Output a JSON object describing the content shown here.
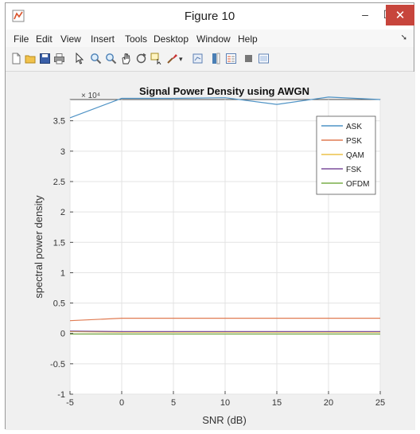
{
  "window": {
    "title": "Figure 10",
    "minimize_glyph": "–",
    "maximize_glyph": "☐",
    "close_glyph": "✕"
  },
  "menu": [
    "File",
    "Edit",
    "View",
    "Insert",
    "Tools",
    "Desktop",
    "Window",
    "Help"
  ],
  "toolbar_icons": [
    "new-figure-icon",
    "open-file-icon",
    "save-icon",
    "print-icon",
    "pointer-icon",
    "zoom-in-icon",
    "zoom-out-icon",
    "pan-icon",
    "rotate-icon",
    "data-cursor-icon",
    "brush-icon",
    "link-icon",
    "colorbar-icon",
    "legend-icon",
    "hide-plot-tools-icon",
    "show-plot-tools-icon"
  ],
  "colors": {
    "ASK": "#4f93c5",
    "PSK": "#e07b52",
    "QAM": "#ecc24a",
    "FSK": "#7b4d9b",
    "OFDM": "#7aad48",
    "close_button": "#c7453c"
  },
  "chart_data": {
    "type": "line",
    "title": "Signal Power Density using AWGN",
    "xlabel": "SNR (dB)",
    "ylabel": "spectral power density",
    "y_exponent_label": "× 10⁴",
    "xlim": [
      -5,
      25
    ],
    "ylim": [
      -10000,
      38500
    ],
    "xticks": [
      -5,
      0,
      5,
      10,
      15,
      20,
      25
    ],
    "yticks": [
      -1,
      -0.5,
      0,
      0.5,
      1,
      1.5,
      2,
      2.5,
      3,
      3.5
    ],
    "ytick_labels": [
      "-1",
      "-0.5",
      "0",
      "0.5",
      "1",
      "1.5",
      "2",
      "2.5",
      "3",
      "3.5"
    ],
    "grid": true,
    "legend_position": "top-right",
    "x": [
      -5,
      0,
      5,
      10,
      15,
      20,
      25
    ],
    "series": [
      {
        "name": "ASK",
        "values": [
          35500,
          38700,
          38700,
          38800,
          37700,
          38900,
          38500
        ]
      },
      {
        "name": "PSK",
        "values": [
          2100,
          2500,
          2500,
          2500,
          2500,
          2500,
          2500
        ]
      },
      {
        "name": "QAM",
        "values": [
          300,
          200,
          200,
          200,
          200,
          200,
          200
        ]
      },
      {
        "name": "FSK",
        "values": [
          400,
          300,
          300,
          300,
          300,
          300,
          300
        ]
      },
      {
        "name": "OFDM",
        "values": [
          -100,
          -100,
          -100,
          -100,
          -100,
          -100,
          -100
        ]
      }
    ]
  }
}
